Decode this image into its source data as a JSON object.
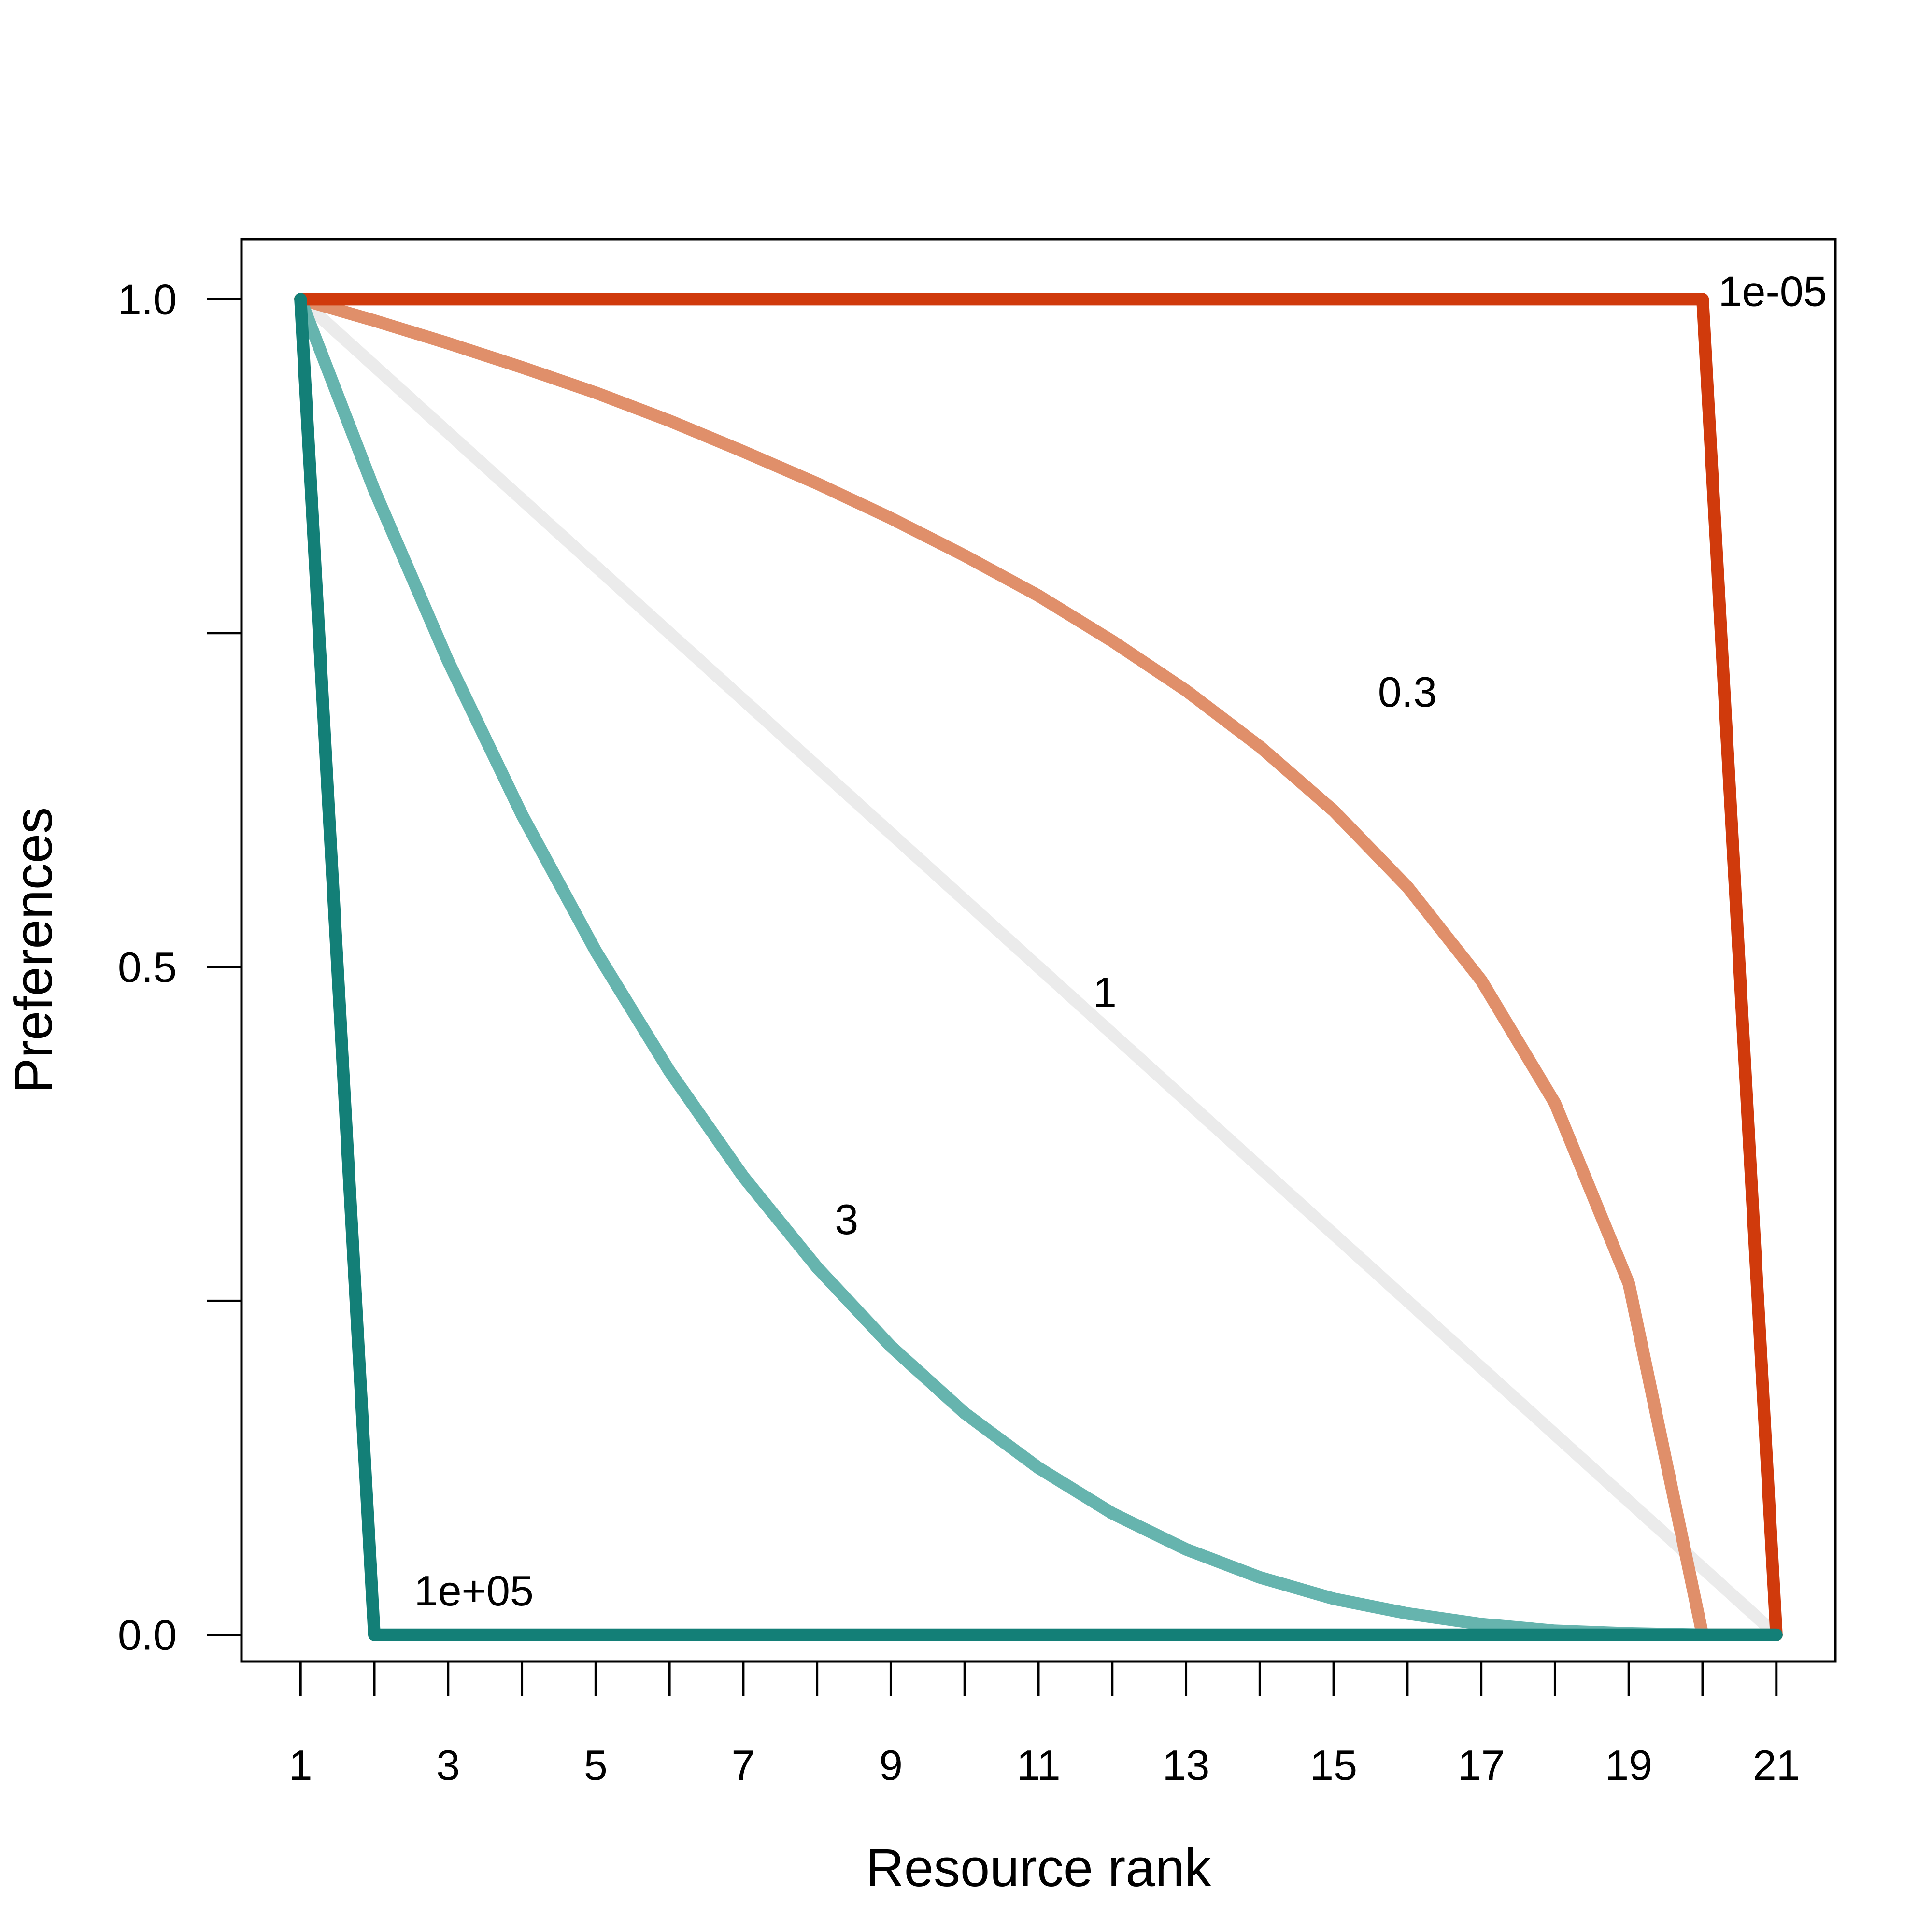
{
  "chart_data": {
    "type": "line",
    "xlabel": "Resource rank",
    "ylabel": "Preferences",
    "xlim": [
      0.2,
      21.8
    ],
    "ylim": [
      -0.02,
      1.045
    ],
    "x_ticks": [
      1,
      2,
      3,
      4,
      5,
      6,
      7,
      8,
      9,
      10,
      11,
      12,
      13,
      14,
      15,
      16,
      17,
      18,
      19,
      20,
      21
    ],
    "x_tick_labels": [
      "1",
      "3",
      "5",
      "7",
      "9",
      "11",
      "13",
      "15",
      "17",
      "19",
      "21"
    ],
    "x_tick_label_values": [
      1,
      3,
      5,
      7,
      9,
      11,
      13,
      15,
      17,
      19,
      21
    ],
    "y_ticks": [
      0,
      0.25,
      0.5,
      0.75,
      1.0
    ],
    "y_tick_labels": [
      "0.0",
      "0.5",
      "1.0"
    ],
    "y_tick_label_values": [
      0,
      0.5,
      1.0
    ],
    "grid": false,
    "series": [
      {
        "name": "1",
        "color": "#ebebeb",
        "x": [
          1,
          2,
          3,
          4,
          5,
          6,
          7,
          8,
          9,
          10,
          11,
          12,
          13,
          14,
          15,
          16,
          17,
          18,
          19,
          20,
          21
        ],
        "values": [
          1.0,
          0.95,
          0.9,
          0.85,
          0.8,
          0.75,
          0.7,
          0.65,
          0.6,
          0.55,
          0.5,
          0.45,
          0.4,
          0.35,
          0.3,
          0.25,
          0.2,
          0.15,
          0.1,
          0.05,
          0.0
        ],
        "label": {
          "text": "1",
          "x": 11.9,
          "y": 0.47
        }
      },
      {
        "name": "0.3",
        "color": "#e08f6a",
        "x": [
          1,
          2,
          3,
          4,
          5,
          6,
          7,
          8,
          9,
          10,
          11,
          12,
          13,
          14,
          15,
          16,
          17,
          18,
          19,
          20,
          21
        ],
        "values": [
          1.0,
          0.984,
          0.967,
          0.949,
          0.93,
          0.909,
          0.886,
          0.862,
          0.836,
          0.808,
          0.778,
          0.744,
          0.707,
          0.665,
          0.617,
          0.56,
          0.49,
          0.398,
          0.263,
          0.0,
          0.0
        ],
        "label": {
          "text": "0.3",
          "x": 16.0,
          "y": 0.695
        }
      },
      {
        "name": "3",
        "color": "#66b4ae",
        "x": [
          1,
          2,
          3,
          4,
          5,
          6,
          7,
          8,
          9,
          10,
          11,
          12,
          13,
          14,
          15,
          16,
          17,
          18,
          19,
          20,
          21
        ],
        "values": [
          1.0,
          0.857,
          0.729,
          0.614,
          0.512,
          0.422,
          0.343,
          0.275,
          0.216,
          0.166,
          0.125,
          0.091,
          0.064,
          0.043,
          0.027,
          0.016,
          0.008,
          0.003,
          0.001,
          0.0,
          0.0
        ],
        "label": {
          "text": "3",
          "x": 8.4,
          "y": 0.3
        }
      },
      {
        "name": "1e-05",
        "color": "#d03a0c",
        "x": [
          1,
          2,
          3,
          4,
          5,
          6,
          7,
          8,
          9,
          10,
          11,
          12,
          13,
          14,
          15,
          16,
          17,
          18,
          19,
          20,
          21
        ],
        "values": [
          1.0,
          1.0,
          1.0,
          1.0,
          1.0,
          1.0,
          1.0,
          1.0,
          1.0,
          1.0,
          1.0,
          1.0,
          1.0,
          1.0,
          1.0,
          1.0,
          1.0,
          1.0,
          1.0,
          1.0,
          0.0
        ],
        "label": {
          "text": "1e-05",
          "x": 20.95,
          "y": 0.995
        }
      },
      {
        "name": "1e+05",
        "color": "#137f77",
        "x": [
          1,
          2,
          3,
          4,
          5,
          6,
          7,
          8,
          9,
          10,
          11,
          12,
          13,
          14,
          15,
          16,
          17,
          18,
          19,
          20,
          21
        ],
        "values": [
          1.0,
          0.0,
          0.0,
          0.0,
          0.0,
          0.0,
          0.0,
          0.0,
          0.0,
          0.0,
          0.0,
          0.0,
          0.0,
          0.0,
          0.0,
          0.0,
          0.0,
          0.0,
          0.0,
          0.0,
          0.0
        ],
        "label": {
          "text": "1e+05",
          "x": 3.35,
          "y": 0.022
        }
      }
    ]
  }
}
